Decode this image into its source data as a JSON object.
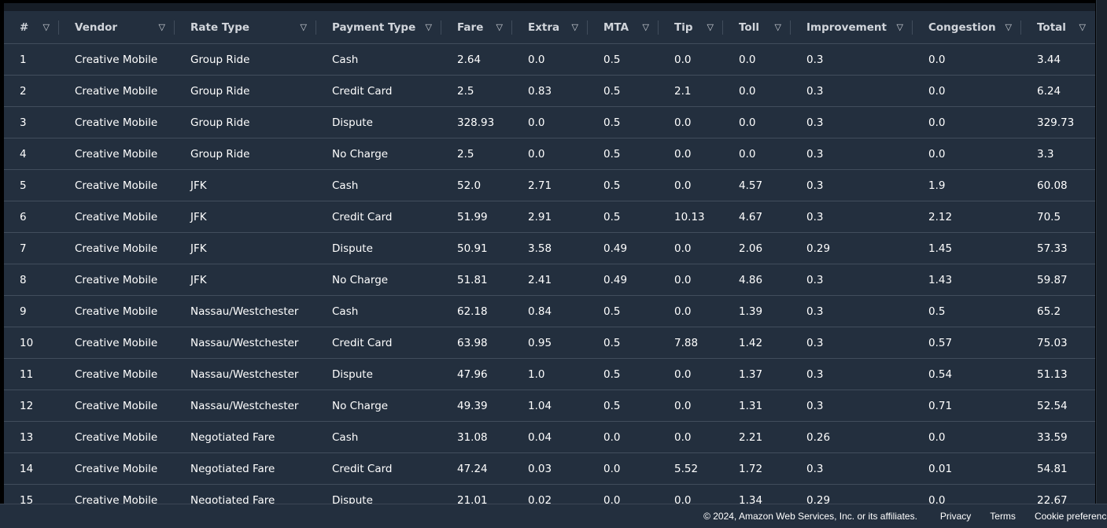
{
  "table": {
    "columns": [
      {
        "label": "#",
        "name": "col-index"
      },
      {
        "label": "Vendor",
        "name": "col-vendor"
      },
      {
        "label": "Rate Type",
        "name": "col-rate-type"
      },
      {
        "label": "Payment Type",
        "name": "col-payment-type"
      },
      {
        "label": "Fare",
        "name": "col-fare"
      },
      {
        "label": "Extra",
        "name": "col-extra"
      },
      {
        "label": "MTA",
        "name": "col-mta"
      },
      {
        "label": "Tip",
        "name": "col-tip"
      },
      {
        "label": "Toll",
        "name": "col-toll"
      },
      {
        "label": "Improvement",
        "name": "col-improvement"
      },
      {
        "label": "Congestion",
        "name": "col-congestion"
      },
      {
        "label": "Total",
        "name": "col-total"
      }
    ],
    "sort_icon": "filter-triangle-icon",
    "rows": [
      [
        "1",
        "Creative Mobile",
        "Group Ride",
        "Cash",
        "2.64",
        "0.0",
        "0.5",
        "0.0",
        "0.0",
        "0.3",
        "0.0",
        "3.44"
      ],
      [
        "2",
        "Creative Mobile",
        "Group Ride",
        "Credit Card",
        "2.5",
        "0.83",
        "0.5",
        "2.1",
        "0.0",
        "0.3",
        "0.0",
        "6.24"
      ],
      [
        "3",
        "Creative Mobile",
        "Group Ride",
        "Dispute",
        "328.93",
        "0.0",
        "0.5",
        "0.0",
        "0.0",
        "0.3",
        "0.0",
        "329.73"
      ],
      [
        "4",
        "Creative Mobile",
        "Group Ride",
        "No Charge",
        "2.5",
        "0.0",
        "0.5",
        "0.0",
        "0.0",
        "0.3",
        "0.0",
        "3.3"
      ],
      [
        "5",
        "Creative Mobile",
        "JFK",
        "Cash",
        "52.0",
        "2.71",
        "0.5",
        "0.0",
        "4.57",
        "0.3",
        "1.9",
        "60.08"
      ],
      [
        "6",
        "Creative Mobile",
        "JFK",
        "Credit Card",
        "51.99",
        "2.91",
        "0.5",
        "10.13",
        "4.67",
        "0.3",
        "2.12",
        "70.5"
      ],
      [
        "7",
        "Creative Mobile",
        "JFK",
        "Dispute",
        "50.91",
        "3.58",
        "0.49",
        "0.0",
        "2.06",
        "0.29",
        "1.45",
        "57.33"
      ],
      [
        "8",
        "Creative Mobile",
        "JFK",
        "No Charge",
        "51.81",
        "2.41",
        "0.49",
        "0.0",
        "4.86",
        "0.3",
        "1.43",
        "59.87"
      ],
      [
        "9",
        "Creative Mobile",
        "Nassau/Westchester",
        "Cash",
        "62.18",
        "0.84",
        "0.5",
        "0.0",
        "1.39",
        "0.3",
        "0.5",
        "65.2"
      ],
      [
        "10",
        "Creative Mobile",
        "Nassau/Westchester",
        "Credit Card",
        "63.98",
        "0.95",
        "0.5",
        "7.88",
        "1.42",
        "0.3",
        "0.57",
        "75.03"
      ],
      [
        "11",
        "Creative Mobile",
        "Nassau/Westchester",
        "Dispute",
        "47.96",
        "1.0",
        "0.5",
        "0.0",
        "1.37",
        "0.3",
        "0.54",
        "51.13"
      ],
      [
        "12",
        "Creative Mobile",
        "Nassau/Westchester",
        "No Charge",
        "49.39",
        "1.04",
        "0.5",
        "0.0",
        "1.31",
        "0.3",
        "0.71",
        "52.54"
      ],
      [
        "13",
        "Creative Mobile",
        "Negotiated Fare",
        "Cash",
        "31.08",
        "0.04",
        "0.0",
        "0.0",
        "2.21",
        "0.26",
        "0.0",
        "33.59"
      ],
      [
        "14",
        "Creative Mobile",
        "Negotiated Fare",
        "Credit Card",
        "47.24",
        "0.03",
        "0.0",
        "5.52",
        "1.72",
        "0.3",
        "0.01",
        "54.81"
      ],
      [
        "15",
        "Creative Mobile",
        "Negotiated Fare",
        "Dispute",
        "21.01",
        "0.02",
        "0.0",
        "0.0",
        "1.34",
        "0.29",
        "0.0",
        "22.67"
      ]
    ]
  },
  "footer": {
    "copyright": "© 2024, Amazon Web Services, Inc. or its affiliates.",
    "links": [
      "Privacy",
      "Terms",
      "Cookie preferences"
    ]
  },
  "colors": {
    "table_background": "#232f3e",
    "row_divider": "#414d5c",
    "text": "#ffffff",
    "header_text": "#d1d5db"
  }
}
